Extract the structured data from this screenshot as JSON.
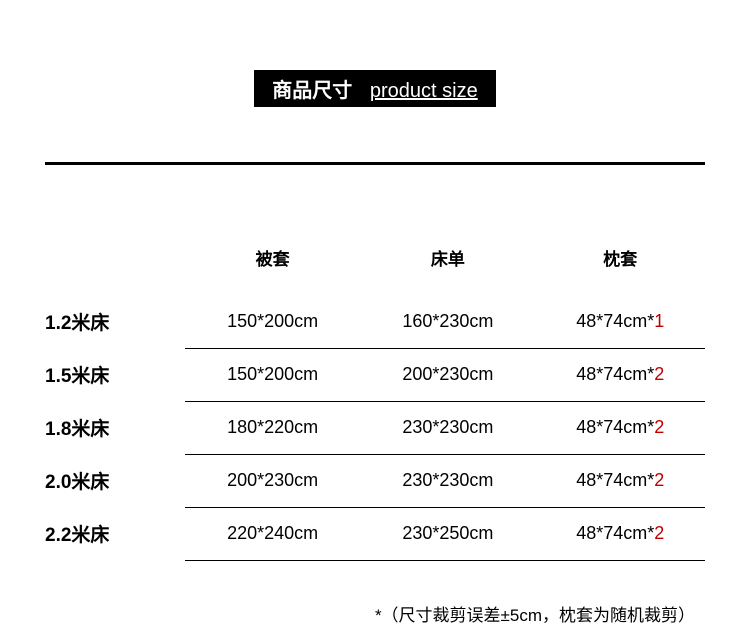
{
  "title": {
    "zh": "商品尺寸",
    "en": "product size"
  },
  "table": {
    "headers": {
      "col0": "",
      "col1": "被套",
      "col2": "床单",
      "col3": "枕套"
    },
    "rows": [
      {
        "bed": "1.2米床",
        "duvet": "150*200cm",
        "sheet": "160*230cm",
        "pillow_base": "48*74cm*",
        "pillow_qty": "1"
      },
      {
        "bed": "1.5米床",
        "duvet": "150*200cm",
        "sheet": "200*230cm",
        "pillow_base": "48*74cm*",
        "pillow_qty": "2"
      },
      {
        "bed": "1.8米床",
        "duvet": "180*220cm",
        "sheet": "230*230cm",
        "pillow_base": "48*74cm*",
        "pillow_qty": "2"
      },
      {
        "bed": "2.0米床",
        "duvet": "200*230cm",
        "sheet": "230*230cm",
        "pillow_base": "48*74cm*",
        "pillow_qty": "2"
      },
      {
        "bed": "2.2米床",
        "duvet": "220*240cm",
        "sheet": "230*250cm",
        "pillow_base": "48*74cm*",
        "pillow_qty": "2"
      }
    ]
  },
  "footnote": "*（尺寸裁剪误差±5cm，枕套为随机裁剪）",
  "colors": {
    "title_bg": "#000000",
    "title_fg": "#ffffff",
    "text": "#000000",
    "qty_highlight": "#c00000",
    "background": "#ffffff"
  }
}
